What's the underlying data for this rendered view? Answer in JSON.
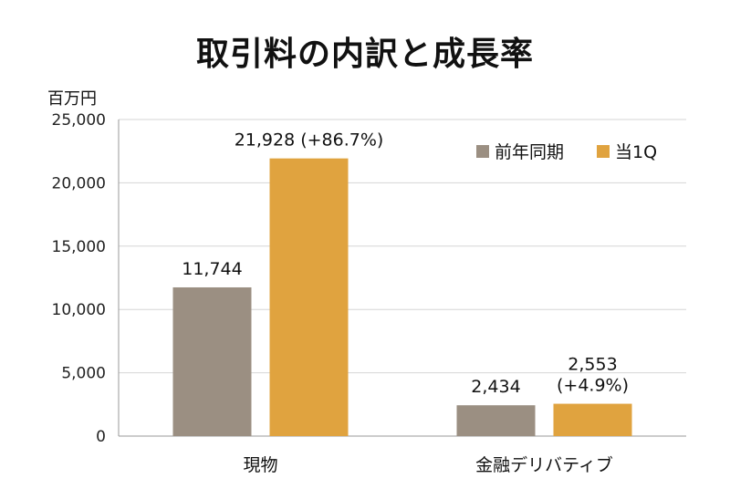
{
  "chart_data": {
    "type": "bar",
    "title": "取引料の内訳と成長率",
    "ylabel": "百万円",
    "xlabel": "",
    "ylim": [
      0,
      25000
    ],
    "yticks": [
      0,
      5000,
      10000,
      15000,
      20000,
      25000
    ],
    "ytick_labels": [
      "0",
      "5,000",
      "10,000",
      "15,000",
      "20,000",
      "25,000"
    ],
    "categories": [
      "現物",
      "金融デリバティブ"
    ],
    "series": [
      {
        "name": "前年同期",
        "color": "#9b8f82",
        "values": [
          11744,
          2434
        ],
        "labels": [
          "11,744",
          "2,434"
        ]
      },
      {
        "name": "当1Q",
        "color": "#e0a33f",
        "values": [
          21928,
          2553
        ],
        "labels": [
          "21,928 (+86.7%)",
          "2,553\n(+4.9%)"
        ]
      }
    ],
    "grid": true,
    "legend_position": "top-right"
  }
}
